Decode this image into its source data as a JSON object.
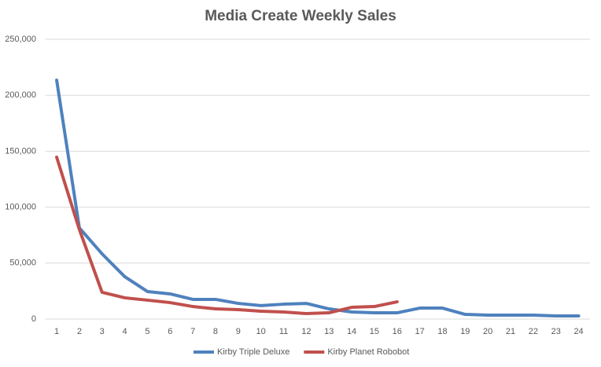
{
  "chart_data": {
    "type": "line",
    "title": "Media Create Weekly Sales",
    "categories": [
      "1",
      "2",
      "3",
      "4",
      "5",
      "6",
      "7",
      "8",
      "9",
      "10",
      "11",
      "12",
      "13",
      "14",
      "15",
      "16",
      "17",
      "18",
      "19",
      "20",
      "21",
      "22",
      "23",
      "24"
    ],
    "series": [
      {
        "name": "Kirby Triple Deluxe",
        "color": "#4f81bd",
        "values": [
          213500,
          81500,
          58300,
          37900,
          24600,
          22500,
          17600,
          17600,
          14000,
          12000,
          13300,
          14000,
          9100,
          6300,
          5600,
          5600,
          9800,
          9800,
          4200,
          3500,
          3500,
          3500,
          2800,
          2800
        ]
      },
      {
        "name": "Kirby Planet Robobot",
        "color": "#c0504d",
        "values": [
          144700,
          80000,
          23900,
          19000,
          16900,
          14700,
          11200,
          9100,
          8400,
          7000,
          6300,
          4900,
          5600,
          10500,
          11200,
          15400,
          null,
          null,
          null,
          null,
          null,
          null,
          null,
          null
        ]
      }
    ],
    "ylim": [
      0,
      250000
    ],
    "yticks": [
      0,
      {
        "value": 50000,
        "label": "50,000"
      },
      {
        "value": 100000,
        "label": "100,000"
      },
      {
        "value": 150000,
        "label": "150,000"
      },
      {
        "value": 200000,
        "label": "200,000"
      },
      {
        "value": 250000,
        "label": "250,000"
      }
    ],
    "grid": true,
    "legend": "bottom"
  }
}
